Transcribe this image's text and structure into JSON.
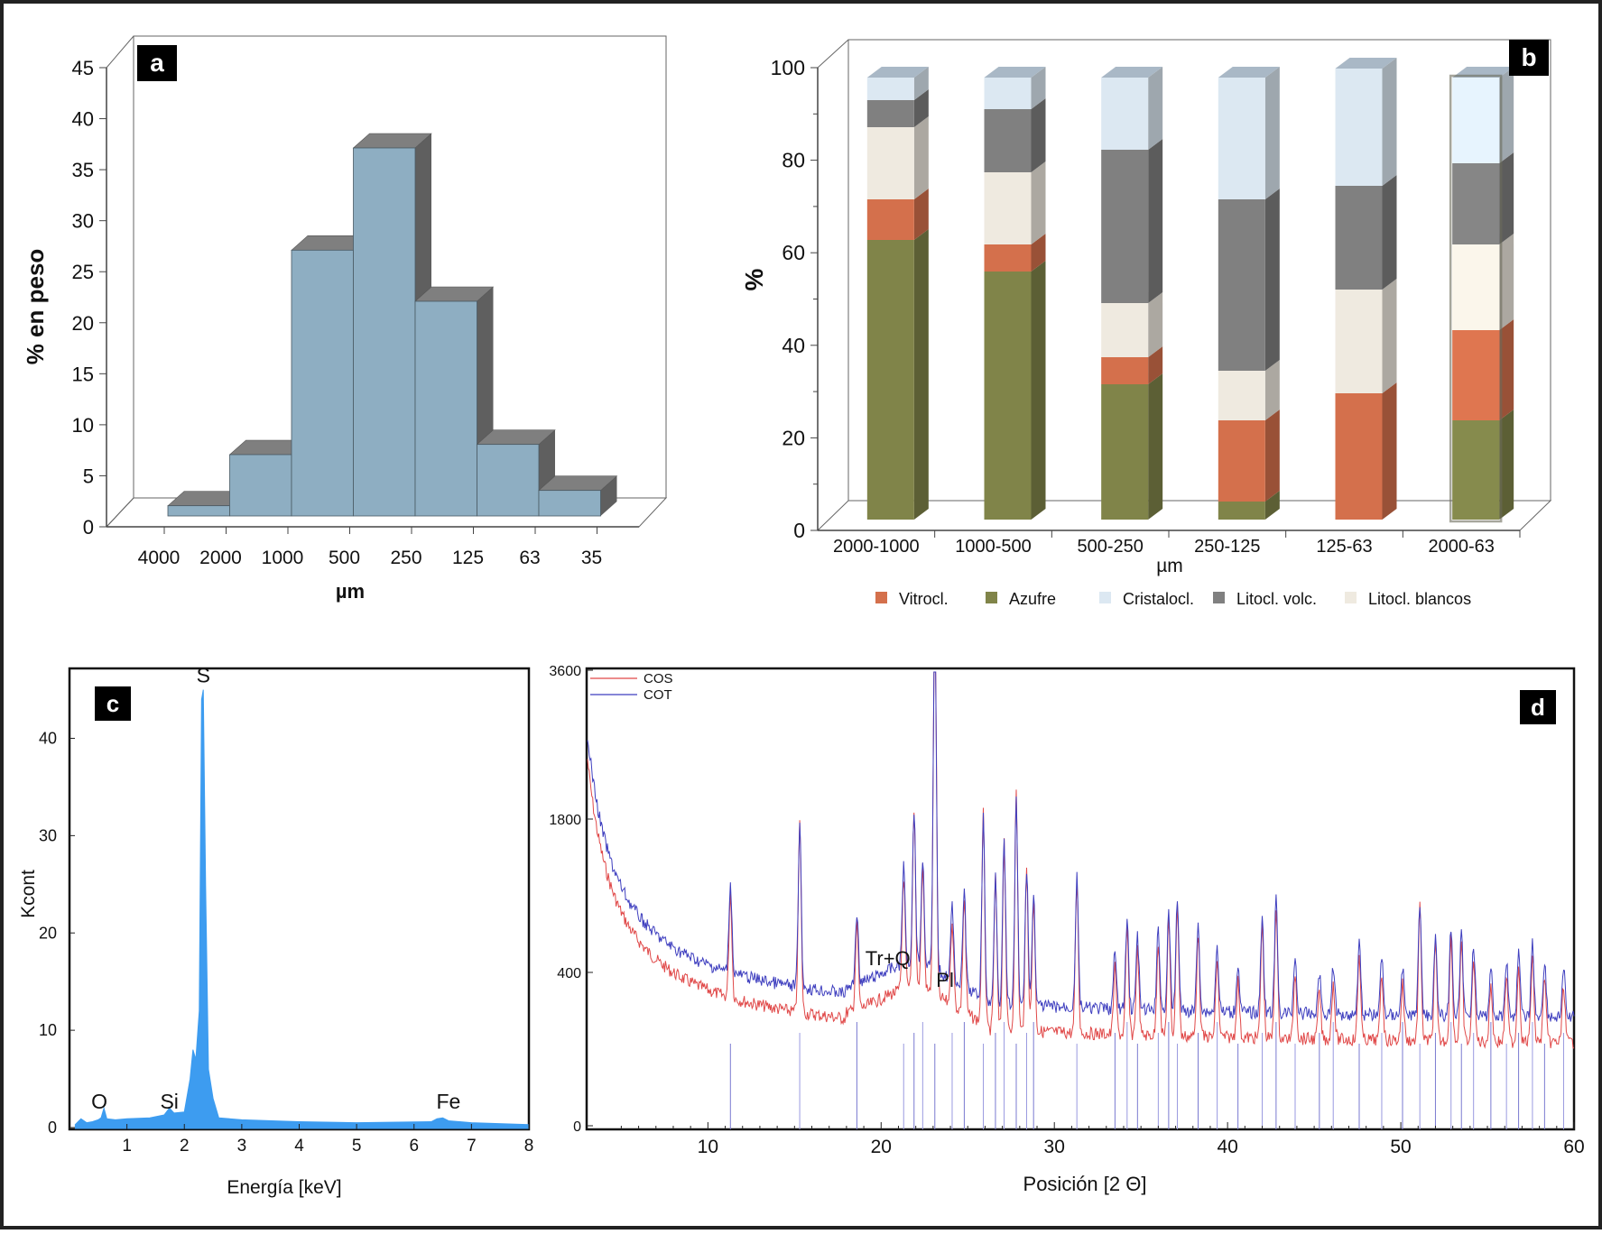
{
  "panels": {
    "a": {
      "label": "a"
    },
    "b": {
      "label": "b"
    },
    "c": {
      "label": "c"
    },
    "d": {
      "label": "d"
    }
  },
  "colors": {
    "histogram_bar": "#8eaec2",
    "histogram_top": "#7f7f7f",
    "histogram_side": "#5f5f5f",
    "Vitrocl.": "#d4704c",
    "Azufre": "#808449",
    "Cristalocl.": "#dce8f2",
    "Litocl. volc.": "#808080",
    "Litocl. blancos": "#efeae0",
    "eds_fill": "#3d9cf0",
    "COS": "#e04848",
    "COT": "#3f3fbf"
  },
  "chart_data": [
    {
      "id": "a",
      "type": "bar",
      "title": "",
      "xlabel": "µm",
      "ylabel": "% en peso",
      "ylim": [
        0,
        45
      ],
      "yticks": [
        "0",
        "5",
        "10",
        "15",
        "20",
        "25",
        "30",
        "35",
        "40",
        "45"
      ],
      "boundaries": [
        "4000",
        "2000",
        "1000",
        "500",
        "250",
        "125",
        "63",
        "35"
      ],
      "values": [
        1,
        6,
        26,
        36,
        21,
        7,
        2.5
      ],
      "grid": false
    },
    {
      "id": "b",
      "type": "bar",
      "stacked": true,
      "xlabel": "µm",
      "ylabel": "%",
      "ylim": [
        0,
        100
      ],
      "yticks": [
        "0",
        "20",
        "40",
        "60",
        "80",
        "100"
      ],
      "categories": [
        "2000-1000",
        "1000-500",
        "500-250",
        "250-125",
        "125-63",
        "2000-63"
      ],
      "series": [
        {
          "name": "Azufre",
          "values": [
            62,
            55,
            30,
            4,
            0,
            22
          ]
        },
        {
          "name": "Vitrocl.",
          "values": [
            9,
            6,
            6,
            18,
            28,
            20
          ]
        },
        {
          "name": "Litocl. blancos",
          "values": [
            16,
            16,
            12,
            11,
            23,
            19
          ]
        },
        {
          "name": "Litocl. volc.",
          "values": [
            6,
            14,
            34,
            38,
            23,
            18
          ]
        },
        {
          "name": "Cristalocl.",
          "values": [
            5,
            7,
            16,
            27,
            26,
            19
          ]
        }
      ],
      "legend": [
        "Vitrocl.",
        "Azufre",
        "Cristalocl.",
        "Litocl. volc.",
        "Litocl. blancos"
      ],
      "legend_position": "bottom",
      "grid": false
    },
    {
      "id": "c",
      "type": "area",
      "xlabel": "Energía [keV]",
      "ylabel": "Kcont",
      "xlim": [
        0,
        8
      ],
      "ylim": [
        0,
        47
      ],
      "xticks": [
        "1",
        "2",
        "3",
        "4",
        "5",
        "6",
        "7",
        "8"
      ],
      "yticks": [
        "0",
        "10",
        "20",
        "30",
        "40"
      ],
      "spectrum": [
        [
          0.1,
          0.3
        ],
        [
          0.2,
          0.9
        ],
        [
          0.3,
          0.5
        ],
        [
          0.4,
          0.6
        ],
        [
          0.5,
          0.8
        ],
        [
          0.55,
          1.0
        ],
        [
          0.6,
          2.0
        ],
        [
          0.65,
          0.9
        ],
        [
          0.8,
          0.8
        ],
        [
          1.0,
          0.9
        ],
        [
          1.4,
          1.0
        ],
        [
          1.65,
          1.3
        ],
        [
          1.74,
          2.0
        ],
        [
          1.82,
          1.5
        ],
        [
          2.0,
          1.6
        ],
        [
          2.1,
          5.0
        ],
        [
          2.15,
          8.0
        ],
        [
          2.2,
          7.0
        ],
        [
          2.26,
          12
        ],
        [
          2.3,
          44
        ],
        [
          2.33,
          45
        ],
        [
          2.37,
          25
        ],
        [
          2.42,
          6
        ],
        [
          2.5,
          3
        ],
        [
          2.6,
          1.0
        ],
        [
          3.0,
          0.8
        ],
        [
          4.0,
          0.6
        ],
        [
          5.0,
          0.5
        ],
        [
          6.3,
          0.6
        ],
        [
          6.4,
          0.9
        ],
        [
          6.5,
          1.0
        ],
        [
          6.6,
          0.7
        ],
        [
          7.0,
          0.5
        ],
        [
          8.0,
          0.3
        ]
      ],
      "peak_labels": [
        {
          "text": "O",
          "x": 0.52,
          "y": 1.4
        },
        {
          "text": "Si",
          "x": 1.74,
          "y": 1.4
        },
        {
          "text": "S",
          "x": 2.33,
          "y": 45.2
        },
        {
          "text": "Fe",
          "x": 6.6,
          "y": 1.4
        }
      ]
    },
    {
      "id": "d",
      "type": "line",
      "xlabel": "Posición [2 Θ]",
      "xlim": [
        3,
        60
      ],
      "xticks": [
        "10",
        "20",
        "30",
        "40",
        "50",
        "60"
      ],
      "yticks": [
        "0",
        "400",
        "1800",
        "3600"
      ],
      "series": [
        {
          "name": "COS"
        },
        {
          "name": "COT"
        }
      ],
      "peaks": [
        11.3,
        15.3,
        18.6,
        21.3,
        21.9,
        22.4,
        23.1,
        24.1,
        24.8,
        25.9,
        26.6,
        27.1,
        27.8,
        28.4,
        28.8,
        31.3,
        33.5,
        34.2,
        34.8,
        36.0,
        36.6,
        37.1,
        38.3,
        39.4,
        40.6,
        42.0,
        42.8,
        43.9,
        45.3,
        46.1,
        47.6,
        48.9,
        50.1,
        51.1,
        52.0,
        52.9,
        53.5,
        54.2,
        55.2,
        56.1,
        56.8,
        57.6,
        58.3,
        59.4
      ],
      "annotations": [
        {
          "text": "Tr+Q",
          "x": 20.7
        },
        {
          "text": "Pl",
          "x": 24.0
        }
      ]
    }
  ]
}
